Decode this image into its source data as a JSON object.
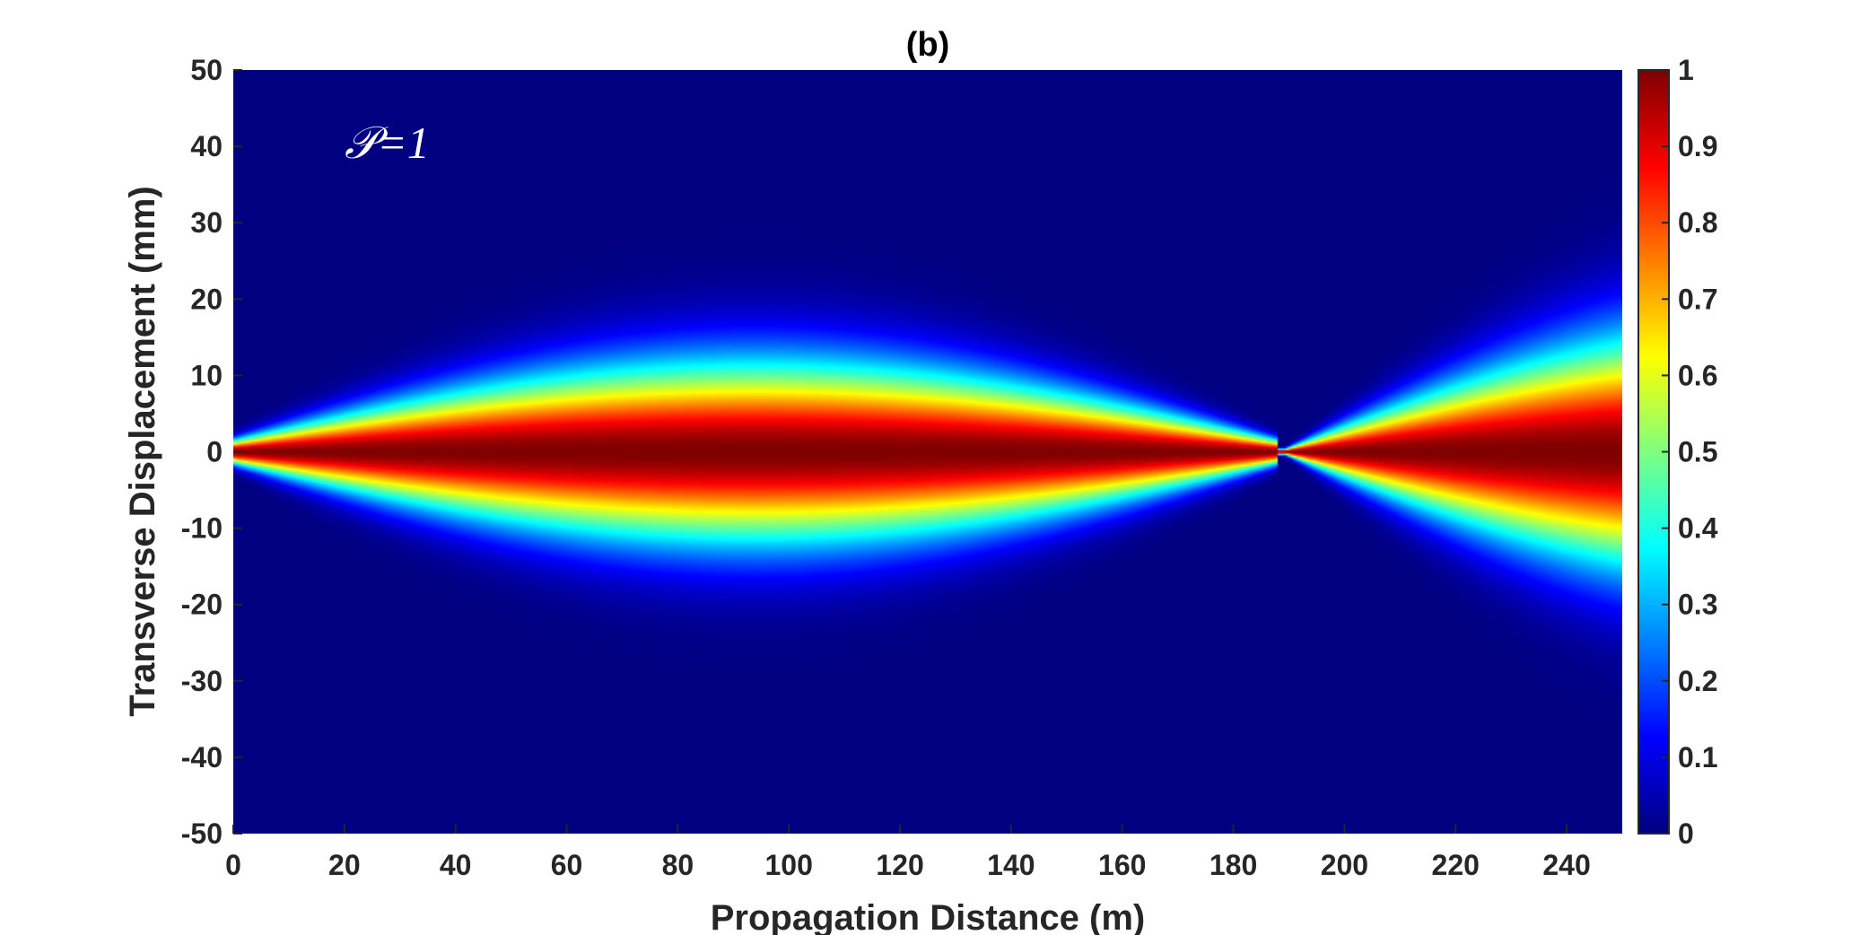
{
  "chart_data": {
    "type": "heatmap",
    "title": "(b)",
    "xlabel": "Propagation Distance (m)",
    "ylabel": "Transverse Displacement (mm)",
    "xlim": [
      0,
      250
    ],
    "ylim": [
      -50,
      50
    ],
    "x_ticks": [
      0,
      20,
      40,
      60,
      80,
      100,
      120,
      140,
      160,
      180,
      200,
      220,
      240
    ],
    "y_ticks": [
      50,
      40,
      30,
      20,
      10,
      0,
      -10,
      -20,
      -30,
      -40,
      -50
    ],
    "colorbar": {
      "min": 0,
      "max": 1,
      "ticks": [
        "1",
        "0.9",
        "0.8",
        "0.7",
        "0.6",
        "0.5",
        "0.4",
        "0.3",
        "0.2",
        "0.1",
        "0"
      ],
      "colormap": "jet"
    },
    "annotation": "𝒫=1",
    "beam": {
      "waist_width_mm": 1.5,
      "max_width_mm": 11.5,
      "max_width_at_m": 94,
      "focus_at_m": 188,
      "width_at_end_mm": 14.5,
      "end_m": 250
    },
    "grid": false
  }
}
